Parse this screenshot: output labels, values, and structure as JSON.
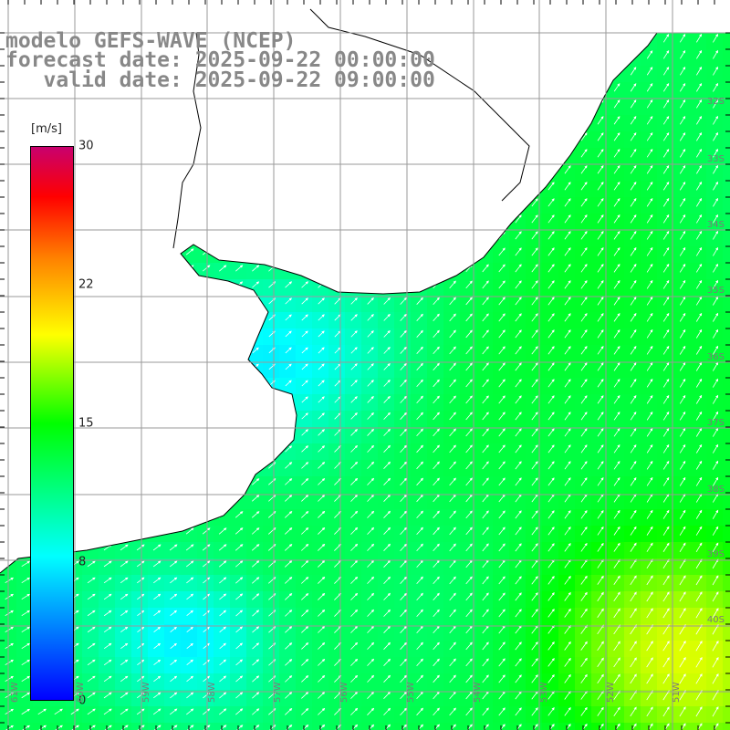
{
  "title": {
    "line1": "modelo GEFS-WAVE (NCEP)",
    "line2": "forecast date: 2025-09-22 00:00:00",
    "line3": "   valid date: 2025-09-22 09:00:00"
  },
  "colorbar": {
    "unit": "[m/s]",
    "ticks": [
      "30",
      "22",
      "15",
      "8",
      "0"
    ],
    "colors": [
      "#0000ff",
      "#0080ff",
      "#00ffff",
      "#00ff00",
      "#ffff00",
      "#ff8000",
      "#ff0000",
      "#c8006e"
    ]
  },
  "grid": {
    "lat_labels": [
      "32S",
      "33S",
      "34S",
      "35S",
      "36S",
      "37S",
      "38S",
      "39S",
      "40S"
    ],
    "lon_labels": [
      "61W",
      "60W",
      "59W",
      "58W",
      "57W",
      "56W",
      "55W",
      "54W",
      "53W",
      "52W",
      "51W"
    ]
  },
  "field": {
    "variable": "wind speed",
    "dominant_direction": "toward northeast"
  }
}
